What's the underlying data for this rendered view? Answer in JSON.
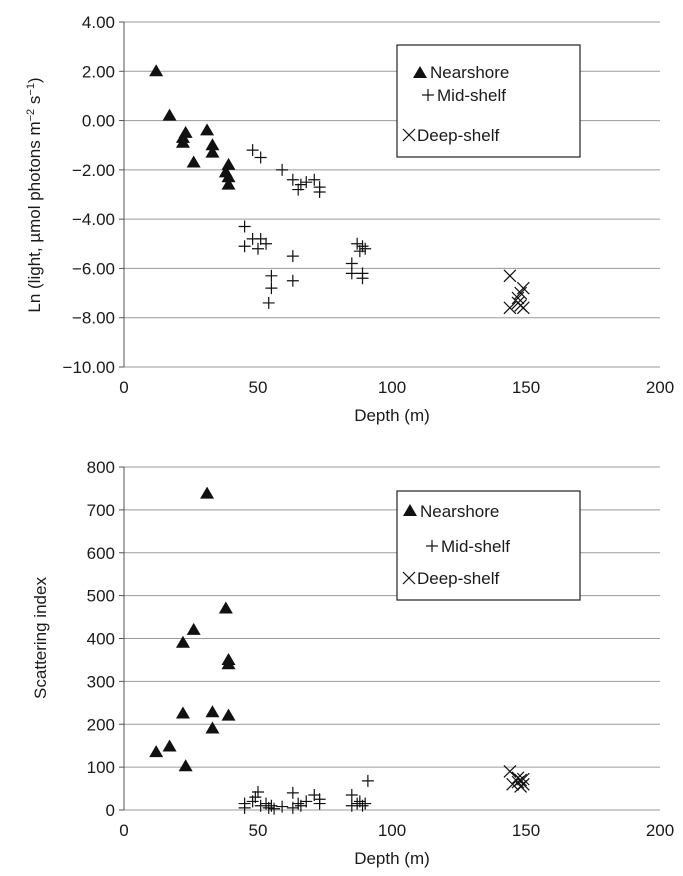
{
  "chart_data": [
    {
      "type": "scatter",
      "xlabel": "Depth (m)",
      "ylabel": "Ln (light, µmol photons m",
      "ylabel_sup1": "−2",
      "ylabel_mid": " s",
      "ylabel_sup2": "−1",
      "ylabel_end": ")",
      "xlim": [
        0,
        200
      ],
      "ylim": [
        -10,
        4
      ],
      "xticks": [
        0,
        50,
        100,
        150,
        200
      ],
      "xtick_labels": [
        "0",
        "50",
        "100",
        "150",
        "200"
      ],
      "yticks": [
        4,
        2,
        0,
        -2,
        -4,
        -6,
        -8,
        -10
      ],
      "ytick_labels": [
        "4.00",
        "2.00",
        "0.00",
        "−2.00",
        "−4.00",
        "−6.00",
        "−8.00",
        "−10.00"
      ],
      "grid": true,
      "legend_position": "top-right",
      "series": [
        {
          "name": "Nearshore",
          "marker": "triangle",
          "points": [
            [
              12,
              2.0
            ],
            [
              17,
              0.2
            ],
            [
              22,
              -0.7
            ],
            [
              22,
              -0.9
            ],
            [
              23,
              -0.5
            ],
            [
              26,
              -1.7
            ],
            [
              31,
              -0.4
            ],
            [
              33,
              -1.0
            ],
            [
              33,
              -1.3
            ],
            [
              38,
              -2.1
            ],
            [
              39,
              -1.8
            ],
            [
              39,
              -2.3
            ],
            [
              39,
              -2.6
            ]
          ]
        },
        {
          "name": "Mid-shelf",
          "marker": "plus",
          "points": [
            [
              48,
              -1.2
            ],
            [
              51,
              -1.5
            ],
            [
              59,
              -2.0
            ],
            [
              63,
              -2.4
            ],
            [
              65,
              -2.8
            ],
            [
              66,
              -2.6
            ],
            [
              68,
              -2.5
            ],
            [
              71,
              -2.4
            ],
            [
              73,
              -2.7
            ],
            [
              73,
              -2.9
            ],
            [
              45,
              -4.3
            ],
            [
              45,
              -5.1
            ],
            [
              48,
              -4.8
            ],
            [
              50,
              -5.2
            ],
            [
              51,
              -4.8
            ],
            [
              53,
              -5.0
            ],
            [
              55,
              -6.3
            ],
            [
              55,
              -6.8
            ],
            [
              54,
              -7.4
            ],
            [
              63,
              -5.5
            ],
            [
              63,
              -6.5
            ],
            [
              85,
              -5.8
            ],
            [
              85,
              -6.2
            ],
            [
              87,
              -5.0
            ],
            [
              88,
              -5.3
            ],
            [
              89,
              -5.1
            ],
            [
              90,
              -5.2
            ],
            [
              89,
              -6.4
            ],
            [
              89,
              -6.2
            ]
          ]
        },
        {
          "name": "Deep-shelf",
          "marker": "cross",
          "points": [
            [
              144,
              -6.3
            ],
            [
              144,
              -7.6
            ],
            [
              147,
              -7.4
            ],
            [
              147,
              -7.2
            ],
            [
              148,
              -7.5
            ],
            [
              148,
              -7.0
            ],
            [
              149,
              -7.6
            ],
            [
              149,
              -6.8
            ]
          ]
        }
      ]
    },
    {
      "type": "scatter",
      "xlabel": "Depth (m)",
      "ylabel": "Scattering index",
      "xlim": [
        0,
        200
      ],
      "ylim": [
        0,
        800
      ],
      "xticks": [
        0,
        50,
        100,
        150,
        200
      ],
      "xtick_labels": [
        "0",
        "50",
        "100",
        "150",
        "200"
      ],
      "yticks": [
        800,
        700,
        600,
        500,
        400,
        300,
        200,
        100,
        0
      ],
      "ytick_labels": [
        "800",
        "700",
        "600",
        "500",
        "400",
        "300",
        "200",
        "100",
        "0"
      ],
      "grid": true,
      "legend_position": "top-right",
      "series": [
        {
          "name": "Nearshore",
          "marker": "triangle",
          "points": [
            [
              12,
              135
            ],
            [
              17,
              148
            ],
            [
              22,
              225
            ],
            [
              22,
              390
            ],
            [
              23,
              102
            ],
            [
              26,
              420
            ],
            [
              31,
              738
            ],
            [
              33,
              228
            ],
            [
              33,
              190
            ],
            [
              38,
              470
            ],
            [
              39,
              350
            ],
            [
              39,
              340
            ],
            [
              39,
              220
            ]
          ]
        },
        {
          "name": "Mid-shelf",
          "marker": "plus",
          "points": [
            [
              45,
              15
            ],
            [
              45,
              5
            ],
            [
              48,
              20
            ],
            [
              49,
              30
            ],
            [
              50,
              42
            ],
            [
              51,
              10
            ],
            [
              53,
              15
            ],
            [
              54,
              5
            ],
            [
              55,
              10
            ],
            [
              56,
              3
            ],
            [
              59,
              8
            ],
            [
              63,
              40
            ],
            [
              63,
              5
            ],
            [
              65,
              15
            ],
            [
              66,
              10
            ],
            [
              68,
              20
            ],
            [
              71,
              35
            ],
            [
              73,
              15
            ],
            [
              73,
              25
            ],
            [
              85,
              35
            ],
            [
              85,
              10
            ],
            [
              87,
              15
            ],
            [
              88,
              20
            ],
            [
              89,
              10
            ],
            [
              90,
              15
            ],
            [
              91,
              68
            ]
          ]
        },
        {
          "name": "Deep-shelf",
          "marker": "cross",
          "points": [
            [
              144,
              90
            ],
            [
              145,
              60
            ],
            [
              147,
              75
            ],
            [
              147,
              65
            ],
            [
              148,
              55
            ],
            [
              148,
              70
            ],
            [
              149,
              60
            ],
            [
              149,
              72
            ]
          ]
        }
      ]
    }
  ]
}
